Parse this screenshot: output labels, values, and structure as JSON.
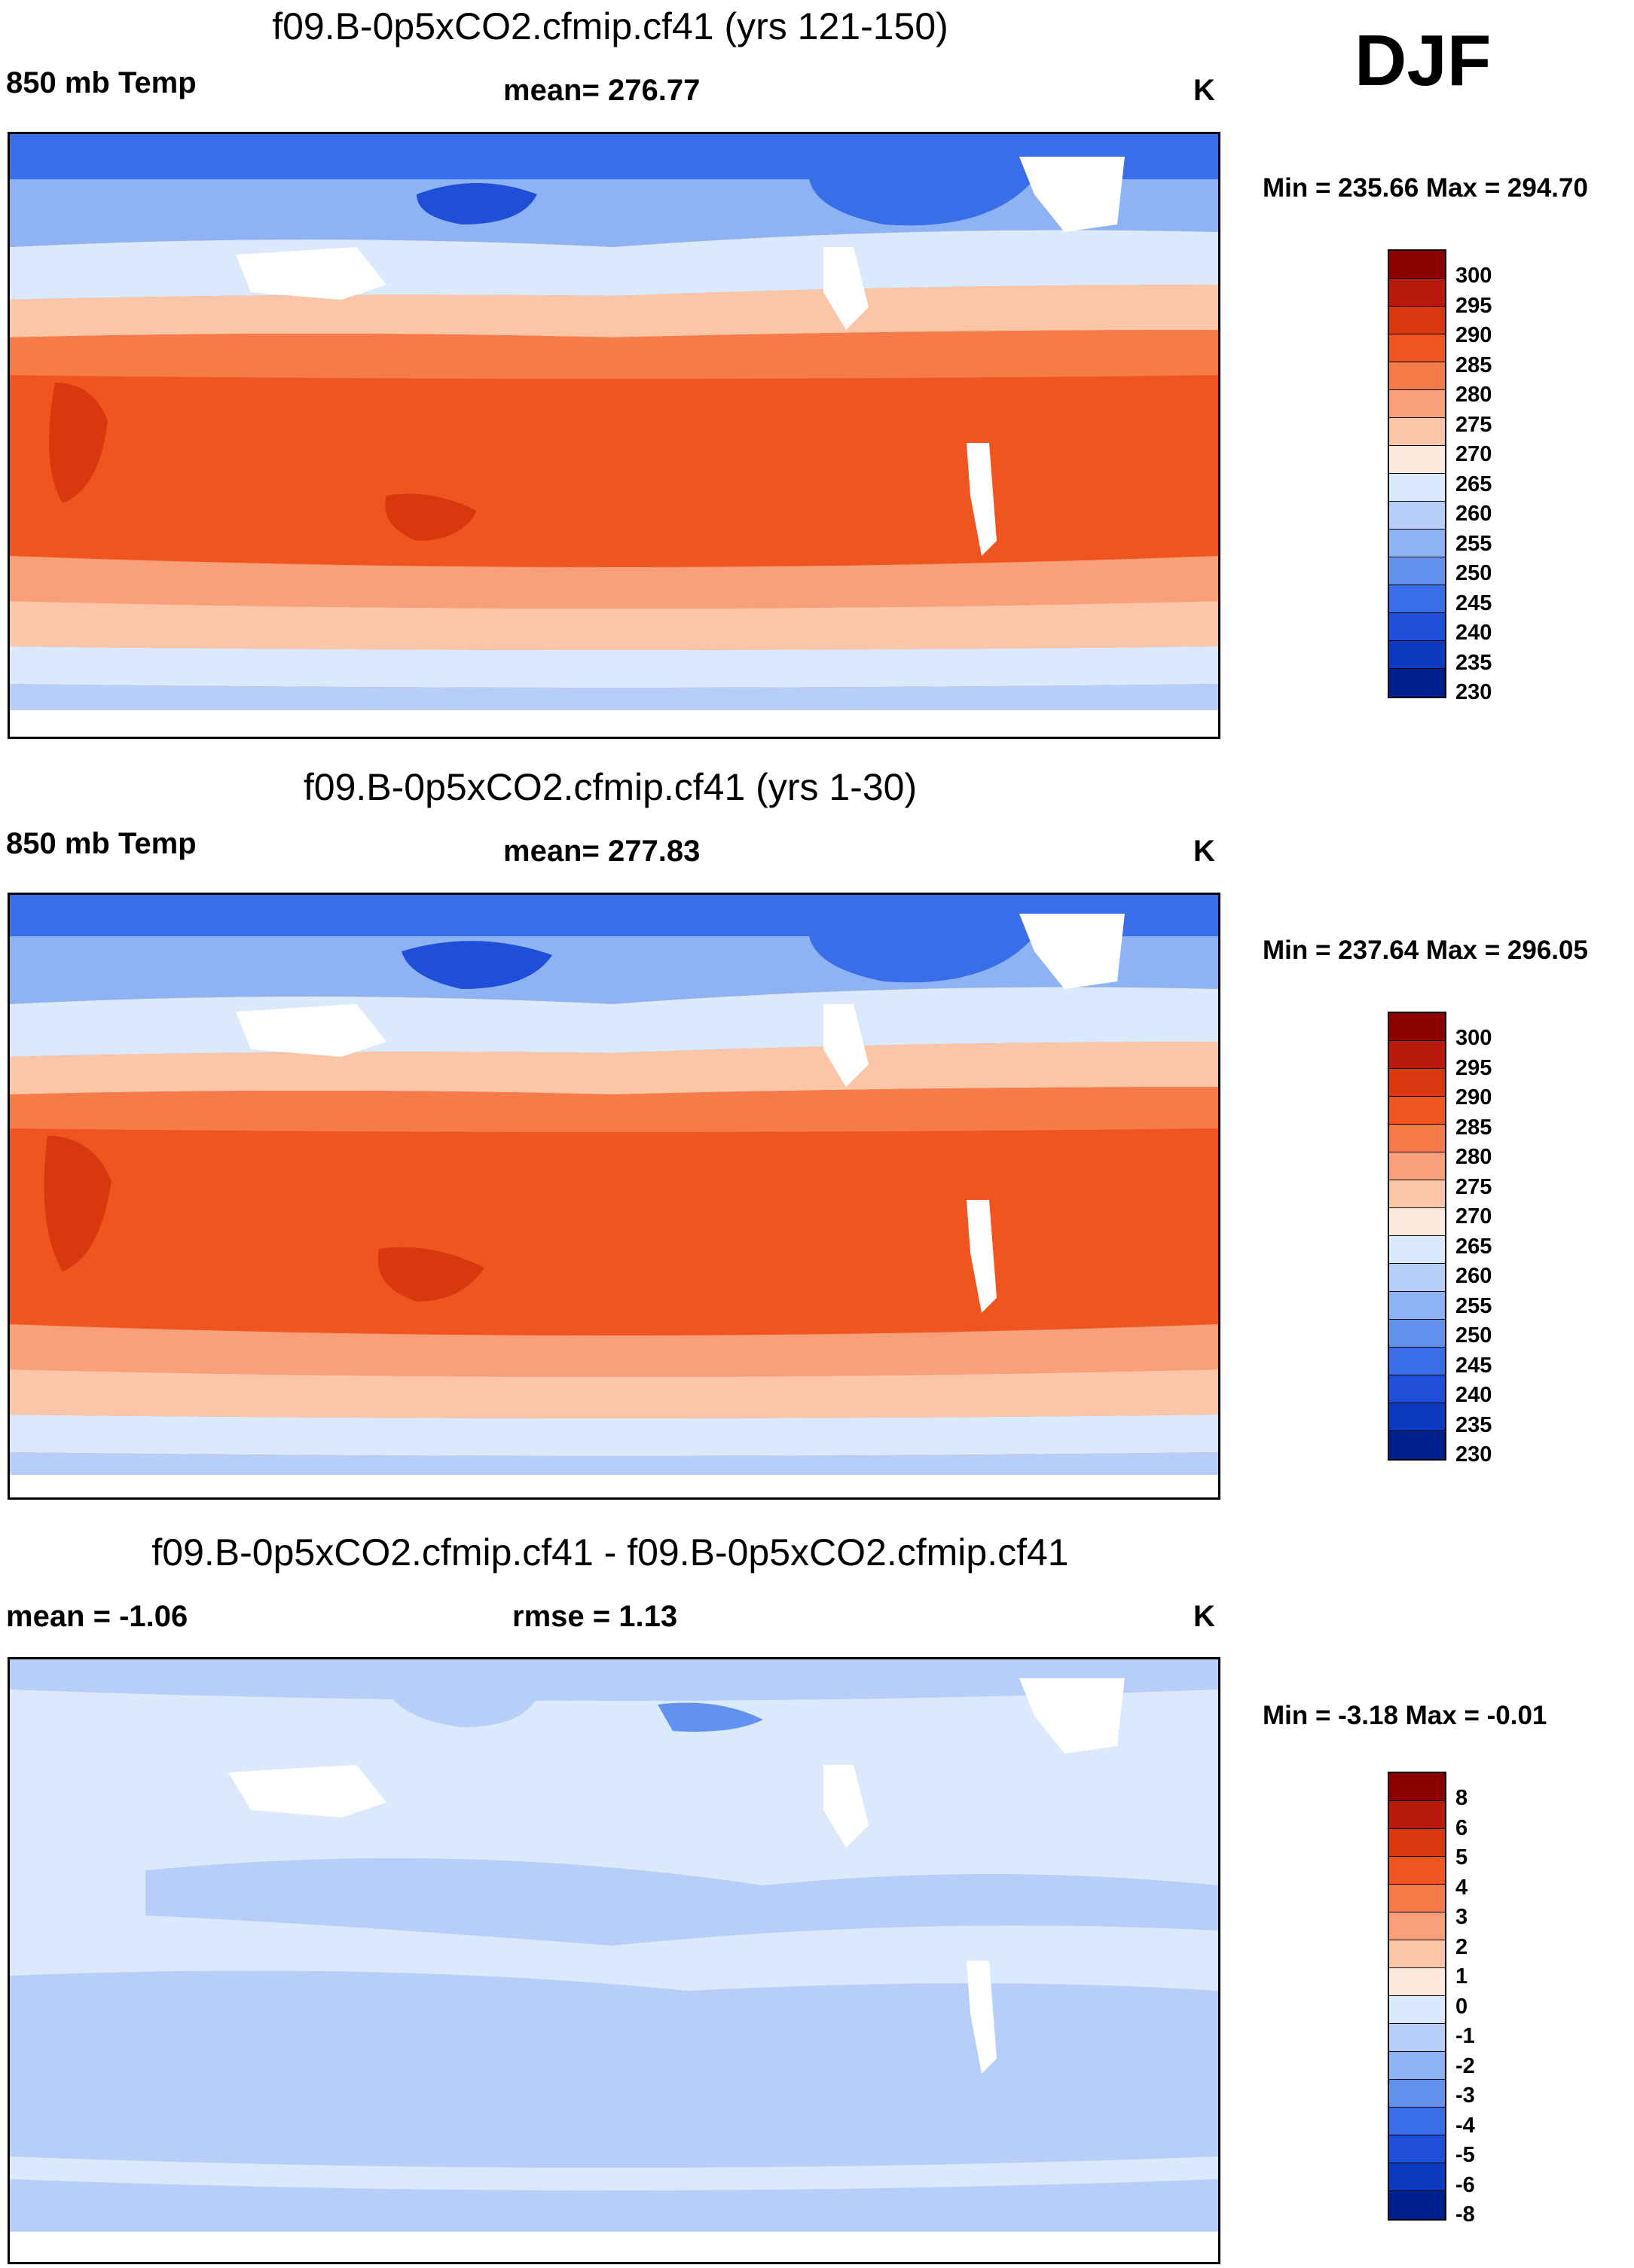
{
  "season": "DJF",
  "panels": [
    {
      "title": "f09.B-0p5xCO2.cfmip.cf41 (yrs 121-150)",
      "left_label": "850 mb Temp",
      "center_label": "mean= 276.77",
      "units": "K",
      "minmax": "Min = 235.66 Max = 294.70",
      "colorbar": {
        "labels": [
          "300",
          "295",
          "290",
          "285",
          "280",
          "275",
          "270",
          "265",
          "260",
          "255",
          "250",
          "245",
          "240",
          "235",
          "230"
        ],
        "colors": [
          "#8b0000",
          "#b81a0b",
          "#d9380f",
          "#f0541f",
          "#f57b48",
          "#f9a07a",
          "#fbc6a8",
          "#fde9dc",
          "#dae9fb",
          "#b7cff8",
          "#8eb3f4",
          "#6392ee",
          "#3a6ee8",
          "#1f4fd8",
          "#0c3abf",
          "#00208f"
        ]
      }
    },
    {
      "title": "f09.B-0p5xCO2.cfmip.cf41 (yrs 1-30)",
      "left_label": "850 mb Temp",
      "center_label": "mean= 277.83",
      "units": "K",
      "minmax": "Min = 237.64 Max = 296.05",
      "colorbar": {
        "labels": [
          "300",
          "295",
          "290",
          "285",
          "280",
          "275",
          "270",
          "265",
          "260",
          "255",
          "250",
          "245",
          "240",
          "235",
          "230"
        ],
        "colors": [
          "#8b0000",
          "#b81a0b",
          "#d9380f",
          "#f0541f",
          "#f57b48",
          "#f9a07a",
          "#fbc6a8",
          "#fde9dc",
          "#dae9fb",
          "#b7cff8",
          "#8eb3f4",
          "#6392ee",
          "#3a6ee8",
          "#1f4fd8",
          "#0c3abf",
          "#00208f"
        ]
      }
    },
    {
      "title": "f09.B-0p5xCO2.cfmip.cf41 - f09.B-0p5xCO2.cfmip.cf41",
      "left_label": "mean =  -1.06",
      "center_label": "rmse =   1.13",
      "units": "K",
      "minmax": "Min =  -3.18 Max =  -0.01",
      "colorbar": {
        "labels": [
          "8",
          "6",
          "5",
          "4",
          "3",
          "2",
          "1",
          "0",
          "-1",
          "-2",
          "-3",
          "-4",
          "-5",
          "-6",
          "-8"
        ],
        "colors": [
          "#8b0000",
          "#b81a0b",
          "#d9380f",
          "#f0541f",
          "#f57b48",
          "#f9a07a",
          "#fbc6a8",
          "#fde9dc",
          "#dae9fb",
          "#b7cff8",
          "#8eb3f4",
          "#6392ee",
          "#3a6ee8",
          "#1f4fd8",
          "#0c3abf",
          "#00208f"
        ]
      }
    }
  ],
  "chart_data": [
    {
      "type": "heatmap",
      "title": "f09.B-0p5xCO2.cfmip.cf41 (yrs 121-150)",
      "variable": "850 mb Temp",
      "units": "K",
      "mean": 276.77,
      "min": 235.66,
      "max": 294.7,
      "contour_levels": [
        230,
        235,
        240,
        245,
        250,
        255,
        260,
        265,
        270,
        275,
        280,
        285,
        290,
        295,
        300
      ]
    },
    {
      "type": "heatmap",
      "title": "f09.B-0p5xCO2.cfmip.cf41 (yrs 1-30)",
      "variable": "850 mb Temp",
      "units": "K",
      "mean": 277.83,
      "min": 237.64,
      "max": 296.05,
      "contour_levels": [
        230,
        235,
        240,
        245,
        250,
        255,
        260,
        265,
        270,
        275,
        280,
        285,
        290,
        295,
        300
      ]
    },
    {
      "type": "heatmap",
      "title": "f09.B-0p5xCO2.cfmip.cf41 - f09.B-0p5xCO2.cfmip.cf41",
      "units": "K",
      "mean": -1.06,
      "rmse": 1.13,
      "min": -3.18,
      "max": -0.01,
      "contour_levels": [
        -8,
        -6,
        -5,
        -4,
        -3,
        -2,
        -1,
        0,
        1,
        2,
        3,
        4,
        5,
        6,
        8
      ]
    }
  ]
}
